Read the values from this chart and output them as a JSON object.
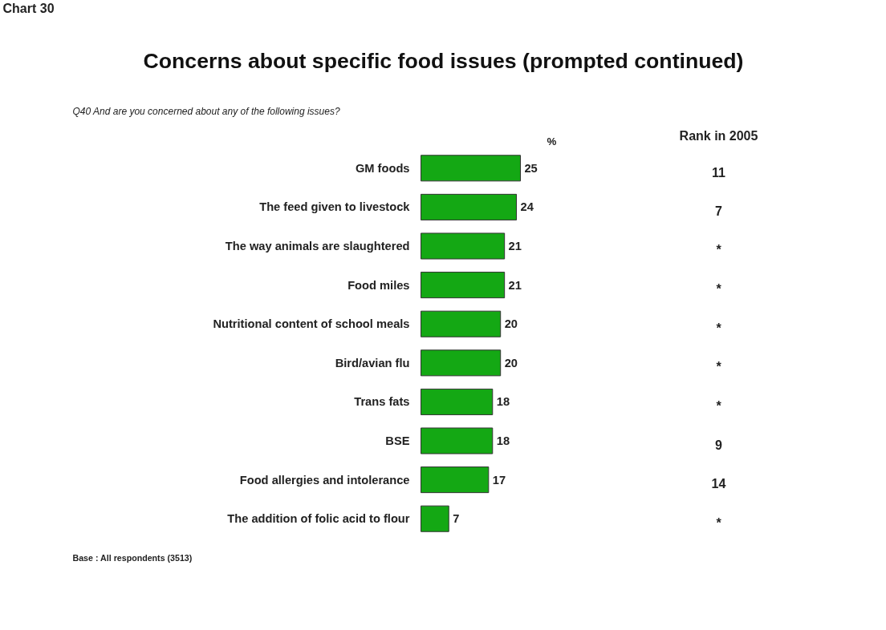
{
  "chart_data": {
    "type": "bar",
    "orientation": "horizontal",
    "title": "Concerns about specific food issues (prompted continued)",
    "subtitle": "Q40 And are you concerned about any of the following issues?",
    "xlabel": "%",
    "categories": [
      "GM foods",
      "The feed given to livestock",
      "The way animals are slaughtered",
      "Food miles",
      "Nutritional content of school meals",
      "Bird/avian flu",
      "Trans fats",
      "BSE",
      "Food allergies and intolerance",
      "The addition of folic acid to flour"
    ],
    "values": [
      25,
      24,
      21,
      21,
      20,
      20,
      18,
      18,
      17,
      7
    ],
    "color": "#14a814",
    "data_labels": true,
    "grid": false,
    "annotations": [
      "Chart 30",
      "Rank in 2005",
      "11",
      "7",
      "*",
      "*",
      "*",
      "*",
      "*",
      "9",
      "14",
      "*",
      "Base : All respondents (3513)"
    ]
  }
}
